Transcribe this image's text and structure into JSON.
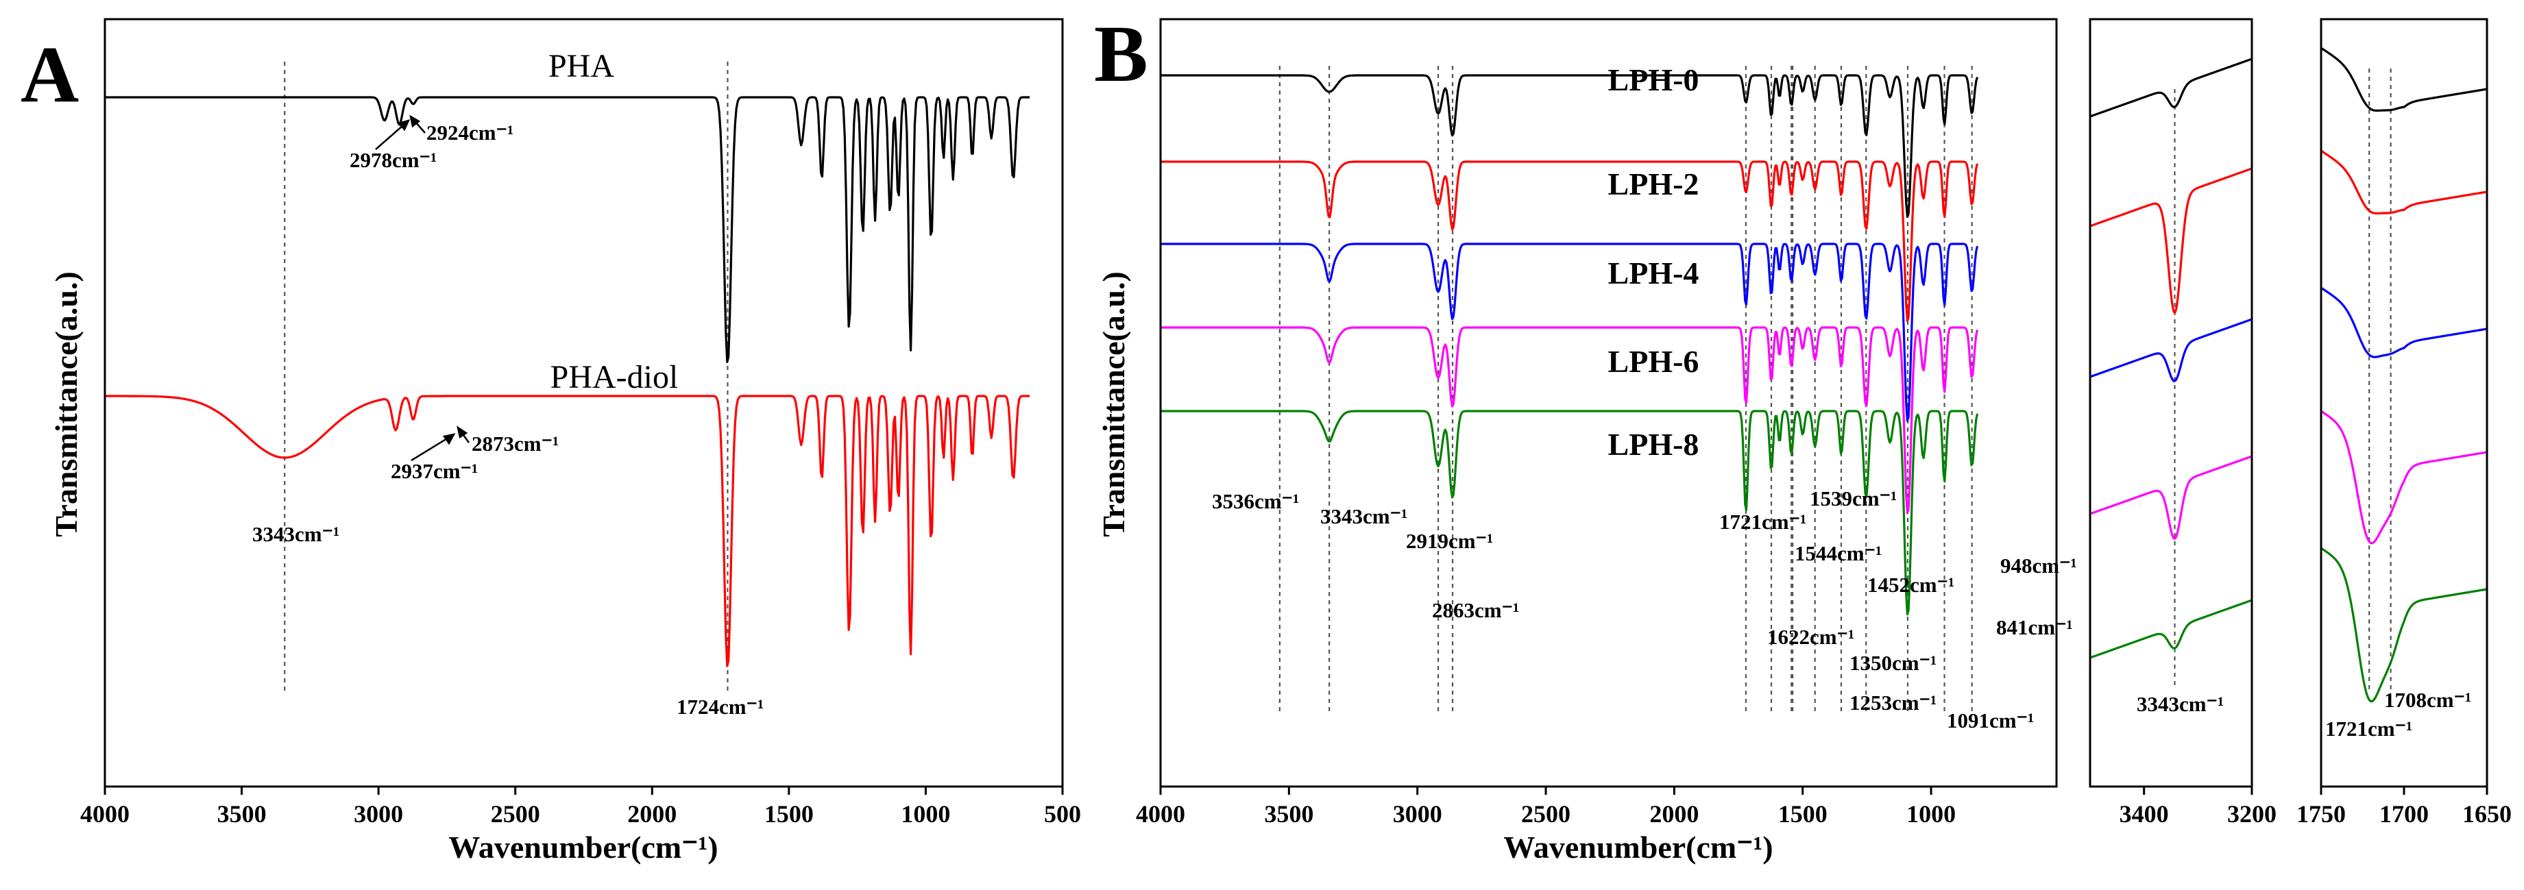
{
  "panels": {
    "A": {
      "letter": "A",
      "ylabel": "Transmittance(a.u.)",
      "xlabel": "Wavenumber(cm⁻¹)",
      "xlim": [
        4000,
        500
      ],
      "xticks": [
        "4000",
        "3500",
        "3000",
        "2500",
        "2000",
        "1500",
        "1000",
        "500"
      ]
    },
    "B": {
      "letter": "B",
      "ylabel": "Transmittance(a.u.)",
      "xlabel": "Wavenumber(cm⁻¹)",
      "xlim": [
        4000,
        800
      ],
      "xticks": [
        "4000",
        "3500",
        "3000",
        "2500",
        "2000",
        "1500",
        "1000"
      ]
    },
    "B_inset_oh": {
      "xlim": [
        3500,
        3200
      ],
      "xticks": [
        "3400",
        "3200"
      ]
    },
    "B_inset_co": {
      "xlim": [
        1750,
        1650
      ],
      "xticks": [
        "1750",
        "1700",
        "1650"
      ]
    }
  },
  "chart_data": [
    {
      "type": "line",
      "panel": "A",
      "xlabel": "Wavenumber(cm⁻¹)",
      "ylabel": "Transmittance(a.u.)",
      "xlim": [
        4000,
        500
      ],
      "series": [
        {
          "name": "PHA",
          "color": "#000000",
          "peaks_cm-1": [
            2978,
            2924,
            1724,
            1380,
            1280,
            1230,
            1185,
            1130,
            1100,
            1055,
            980,
            900,
            830,
            680
          ]
        },
        {
          "name": "PHA-diol",
          "color": "#ff0000",
          "peaks_cm-1": [
            3343,
            2937,
            2873,
            1724,
            1380,
            1280,
            1230,
            1185,
            1130,
            1100,
            1055,
            980,
            900,
            830,
            680
          ]
        }
      ],
      "annotations": [
        "2978cm⁻¹",
        "2924cm⁻¹",
        "2937cm⁻¹",
        "2873cm⁻¹",
        "3343cm⁻¹",
        "1724cm⁻¹"
      ],
      "reference_lines_cm-1": [
        3343,
        1724
      ]
    },
    {
      "type": "line",
      "panel": "B",
      "xlabel": "Wavenumber(cm⁻¹)",
      "ylabel": "Transmittance(a.u.)",
      "xlim": [
        4000,
        800
      ],
      "series": [
        {
          "name": "LPH-0",
          "color": "#000000"
        },
        {
          "name": "LPH-2",
          "color": "#ff0000"
        },
        {
          "name": "LPH-4",
          "color": "#0000ff"
        },
        {
          "name": "LPH-6",
          "color": "#ff00ff"
        },
        {
          "name": "LPH-8",
          "color": "#008000"
        }
      ],
      "annotations": [
        "3536cm⁻¹",
        "3343cm⁻¹",
        "2919cm⁻¹",
        "2863cm⁻¹",
        "1721cm⁻¹",
        "1539cm⁻¹",
        "1544cm⁻¹",
        "1622cm⁻¹",
        "1452cm⁻¹",
        "1350cm⁻¹",
        "1253cm⁻¹",
        "1091cm⁻¹",
        "948cm⁻¹",
        "841cm⁻¹"
      ],
      "reference_lines_cm-1": [
        3536,
        3343,
        2919,
        2863,
        1721,
        1622,
        1544,
        1539,
        1452,
        1350,
        1253,
        1091,
        948,
        841
      ]
    },
    {
      "type": "line",
      "panel": "B-inset-OH",
      "xlim": [
        3500,
        3200
      ],
      "annotations": [
        "3343cm⁻¹"
      ],
      "reference_lines_cm-1": [
        3343
      ]
    },
    {
      "type": "line",
      "panel": "B-inset-CO",
      "xlim": [
        1750,
        1650
      ],
      "annotations": [
        "1708cm⁻¹",
        "1721cm⁻¹"
      ],
      "reference_lines_cm-1": [
        1721,
        1708
      ]
    }
  ]
}
